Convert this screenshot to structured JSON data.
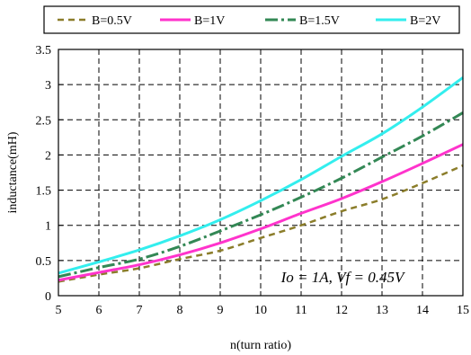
{
  "chart_data": {
    "type": "line",
    "xlabel": "n(turn ratio)",
    "ylabel": "inductance(mH)",
    "xlim": [
      5,
      15
    ],
    "ylim": [
      0,
      3.5
    ],
    "xticks": [
      5,
      6,
      7,
      8,
      9,
      10,
      11,
      12,
      13,
      14,
      15
    ],
    "yticks": [
      0,
      0.5,
      1,
      1.5,
      2,
      2.5,
      3,
      3.5
    ],
    "ytick_labels": [
      "0",
      "0.5",
      "1",
      "1.5",
      "2",
      "2.5",
      "3",
      "3.5"
    ],
    "grid": true,
    "legend_position": "top",
    "annotation": "Io = 1A,  Vf = 0.45V",
    "x": [
      5,
      6,
      7,
      8,
      9,
      10,
      11,
      12,
      13,
      14,
      15
    ],
    "series": [
      {
        "name": "B=0.5V",
        "color": "#8b7d2a",
        "dash": "7,5",
        "width": 2.5,
        "values": [
          0.2,
          0.3,
          0.39,
          0.52,
          0.64,
          0.82,
          1.0,
          1.2,
          1.37,
          1.6,
          1.85
        ]
      },
      {
        "name": "B=1V",
        "color": "#ff33cc",
        "dash": "",
        "width": 3,
        "values": [
          0.22,
          0.33,
          0.44,
          0.58,
          0.75,
          0.95,
          1.17,
          1.38,
          1.62,
          1.88,
          2.15
        ]
      },
      {
        "name": "B=1.5V",
        "color": "#338855",
        "dash": "14,4,3,4",
        "width": 3,
        "values": [
          0.27,
          0.4,
          0.52,
          0.7,
          0.92,
          1.15,
          1.4,
          1.67,
          1.97,
          2.27,
          2.6
        ]
      },
      {
        "name": "B=2V",
        "color": "#33eeee",
        "dash": "",
        "width": 3,
        "values": [
          0.32,
          0.48,
          0.65,
          0.85,
          1.08,
          1.35,
          1.65,
          1.98,
          2.3,
          2.68,
          3.1
        ]
      }
    ]
  }
}
